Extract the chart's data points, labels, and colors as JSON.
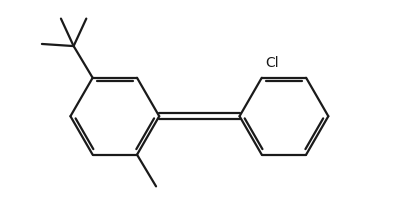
{
  "bg_color": "#ffffff",
  "line_color": "#1a1a1a",
  "line_width": 1.6,
  "figsize": [
    4.03,
    2.24
  ],
  "dpi": 100,
  "cl_label": "Cl",
  "cl_fontsize": 10
}
